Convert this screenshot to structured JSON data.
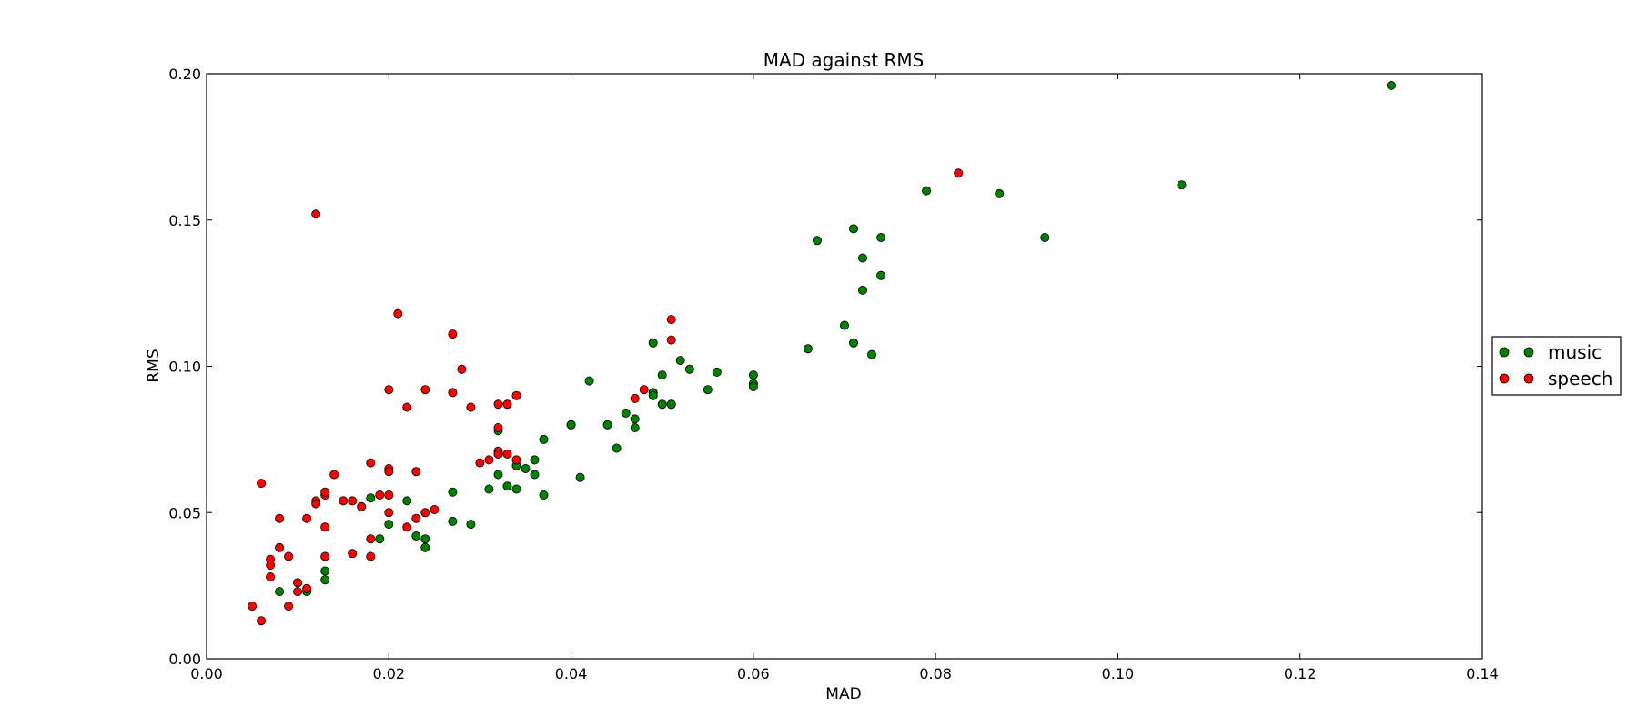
{
  "chart_data": {
    "type": "scatter",
    "title": "MAD against RMS",
    "xlabel": "MAD",
    "ylabel": "RMS",
    "xlim": [
      0.0,
      0.14
    ],
    "ylim": [
      0.0,
      0.2
    ],
    "xticks": [
      "0.00",
      "0.02",
      "0.04",
      "0.06",
      "0.08",
      "0.10",
      "0.12",
      "0.14"
    ],
    "yticks": [
      "0.00",
      "0.05",
      "0.10",
      "0.15",
      "0.20"
    ],
    "grid": false,
    "legend_placement": "right",
    "series": [
      {
        "name": "music",
        "color": "#008000",
        "points": [
          [
            0.13,
            0.196
          ],
          [
            0.107,
            0.162
          ],
          [
            0.092,
            0.144
          ],
          [
            0.087,
            0.159
          ],
          [
            0.079,
            0.16
          ],
          [
            0.071,
            0.147
          ],
          [
            0.074,
            0.144
          ],
          [
            0.067,
            0.143
          ],
          [
            0.072,
            0.137
          ],
          [
            0.074,
            0.131
          ],
          [
            0.072,
            0.126
          ],
          [
            0.07,
            0.114
          ],
          [
            0.071,
            0.108
          ],
          [
            0.073,
            0.104
          ],
          [
            0.066,
            0.106
          ],
          [
            0.06,
            0.097
          ],
          [
            0.06,
            0.094
          ],
          [
            0.06,
            0.093
          ],
          [
            0.056,
            0.098
          ],
          [
            0.055,
            0.092
          ],
          [
            0.053,
            0.099
          ],
          [
            0.052,
            0.102
          ],
          [
            0.05,
            0.097
          ],
          [
            0.049,
            0.108
          ],
          [
            0.049,
            0.091
          ],
          [
            0.049,
            0.09
          ],
          [
            0.05,
            0.087
          ],
          [
            0.051,
            0.087
          ],
          [
            0.051,
            0.087
          ],
          [
            0.046,
            0.084
          ],
          [
            0.047,
            0.082
          ],
          [
            0.047,
            0.079
          ],
          [
            0.044,
            0.08
          ],
          [
            0.045,
            0.072
          ],
          [
            0.042,
            0.095
          ],
          [
            0.04,
            0.08
          ],
          [
            0.04,
            0.08
          ],
          [
            0.041,
            0.062
          ],
          [
            0.037,
            0.075
          ],
          [
            0.036,
            0.068
          ],
          [
            0.036,
            0.063
          ],
          [
            0.037,
            0.056
          ],
          [
            0.034,
            0.066
          ],
          [
            0.035,
            0.065
          ],
          [
            0.034,
            0.058
          ],
          [
            0.033,
            0.059
          ],
          [
            0.032,
            0.063
          ],
          [
            0.031,
            0.058
          ],
          [
            0.032,
            0.078
          ],
          [
            0.032,
            0.07
          ],
          [
            0.027,
            0.057
          ],
          [
            0.027,
            0.047
          ],
          [
            0.029,
            0.046
          ],
          [
            0.022,
            0.054
          ],
          [
            0.023,
            0.042
          ],
          [
            0.024,
            0.041
          ],
          [
            0.024,
            0.038
          ],
          [
            0.018,
            0.055
          ],
          [
            0.02,
            0.046
          ],
          [
            0.019,
            0.041
          ],
          [
            0.013,
            0.03
          ],
          [
            0.013,
            0.027
          ],
          [
            0.011,
            0.023
          ],
          [
            0.008,
            0.023
          ]
        ]
      },
      {
        "name": "speech",
        "color": "#ff0000",
        "points": [
          [
            0.0825,
            0.166
          ],
          [
            0.012,
            0.152
          ],
          [
            0.051,
            0.116
          ],
          [
            0.051,
            0.109
          ],
          [
            0.021,
            0.118
          ],
          [
            0.027,
            0.111
          ],
          [
            0.028,
            0.099
          ],
          [
            0.02,
            0.092
          ],
          [
            0.024,
            0.092
          ],
          [
            0.027,
            0.091
          ],
          [
            0.022,
            0.086
          ],
          [
            0.029,
            0.086
          ],
          [
            0.032,
            0.087
          ],
          [
            0.033,
            0.087
          ],
          [
            0.034,
            0.09
          ],
          [
            0.047,
            0.089
          ],
          [
            0.048,
            0.092
          ],
          [
            0.032,
            0.079
          ],
          [
            0.032,
            0.071
          ],
          [
            0.032,
            0.07
          ],
          [
            0.033,
            0.07
          ],
          [
            0.034,
            0.068
          ],
          [
            0.03,
            0.067
          ],
          [
            0.031,
            0.068
          ],
          [
            0.018,
            0.067
          ],
          [
            0.02,
            0.065
          ],
          [
            0.02,
            0.064
          ],
          [
            0.023,
            0.064
          ],
          [
            0.014,
            0.063
          ],
          [
            0.02,
            0.056
          ],
          [
            0.019,
            0.056
          ],
          [
            0.016,
            0.054
          ],
          [
            0.015,
            0.054
          ],
          [
            0.013,
            0.056
          ],
          [
            0.013,
            0.057
          ],
          [
            0.012,
            0.054
          ],
          [
            0.012,
            0.053
          ],
          [
            0.017,
            0.052
          ],
          [
            0.02,
            0.05
          ],
          [
            0.024,
            0.05
          ],
          [
            0.023,
            0.048
          ],
          [
            0.025,
            0.051
          ],
          [
            0.022,
            0.045
          ],
          [
            0.011,
            0.048
          ],
          [
            0.013,
            0.045
          ],
          [
            0.008,
            0.048
          ],
          [
            0.006,
            0.06
          ],
          [
            0.018,
            0.041
          ],
          [
            0.018,
            0.035
          ],
          [
            0.016,
            0.036
          ],
          [
            0.013,
            0.035
          ],
          [
            0.009,
            0.035
          ],
          [
            0.008,
            0.038
          ],
          [
            0.007,
            0.034
          ],
          [
            0.007,
            0.032
          ],
          [
            0.007,
            0.028
          ],
          [
            0.01,
            0.026
          ],
          [
            0.011,
            0.024
          ],
          [
            0.01,
            0.023
          ],
          [
            0.009,
            0.018
          ],
          [
            0.005,
            0.018
          ],
          [
            0.006,
            0.013
          ]
        ]
      }
    ]
  }
}
